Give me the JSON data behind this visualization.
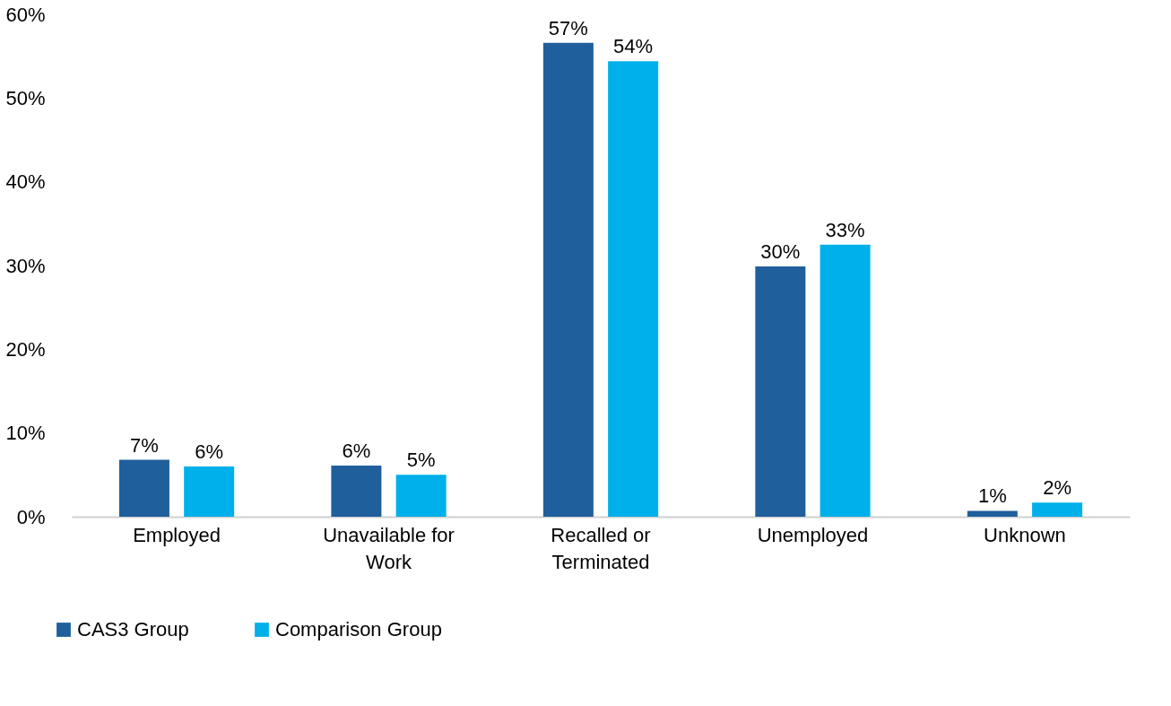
{
  "chart_data": {
    "type": "bar",
    "categories": [
      "Employed",
      "Unavailable for Work",
      "Recalled or Terminated",
      "Unemployed",
      "Unknown"
    ],
    "series": [
      {
        "name": "CAS3 Group",
        "color": "#1f5f9c",
        "values": [
          6.8,
          6.1,
          56.6,
          29.9,
          0.7
        ],
        "value_labels": [
          "7%",
          "6%",
          "57%",
          "30%",
          "1%"
        ]
      },
      {
        "name": "Comparison Group",
        "color": "#00b0ea",
        "values": [
          6.0,
          5.0,
          54.4,
          32.5,
          1.7
        ],
        "value_labels": [
          "6%",
          "5%",
          "54%",
          "33%",
          "2%"
        ]
      }
    ],
    "ylim": [
      0,
      60
    ],
    "yticks": [
      {
        "value": 0,
        "label": "0%"
      },
      {
        "value": 10,
        "label": "10%"
      },
      {
        "value": 20,
        "label": "20%"
      },
      {
        "value": 30,
        "label": "30%"
      },
      {
        "value": 40,
        "label": "40%"
      },
      {
        "value": 50,
        "label": "50%"
      },
      {
        "value": 60,
        "label": "60%"
      }
    ],
    "grid": false,
    "legend": "bottom left"
  }
}
